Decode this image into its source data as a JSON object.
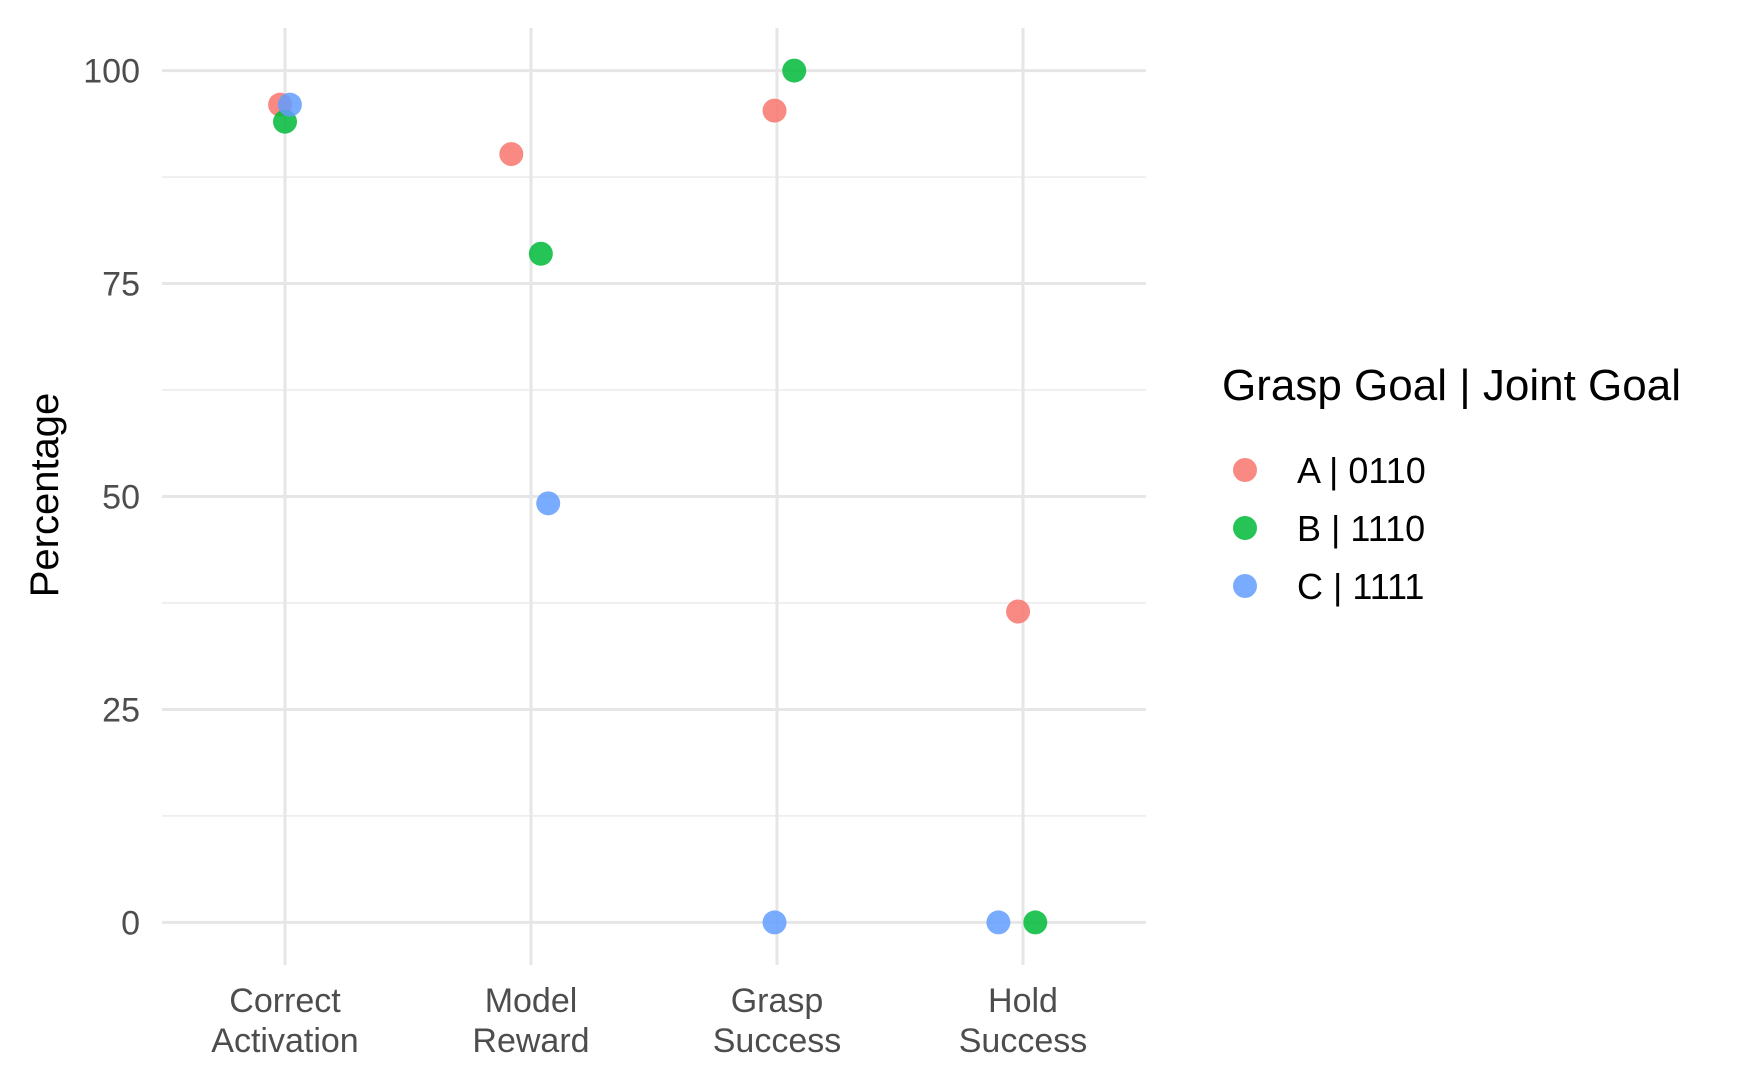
{
  "chart_data": {
    "type": "scatter",
    "title": "",
    "xlabel": "",
    "ylabel": "Percentage",
    "ylim": [
      -5,
      105
    ],
    "yticks": [
      0,
      25,
      50,
      75,
      100
    ],
    "grid": true,
    "legend": {
      "title": "Grasp Goal | Joint Goal",
      "placement": "right"
    },
    "categories": [
      [
        "Correct",
        "Activation"
      ],
      [
        "Model",
        "Reward"
      ],
      [
        "Grasp",
        "Success"
      ],
      [
        "Hold",
        "Success"
      ]
    ],
    "series": [
      {
        "name": "A | 0110",
        "color": "#F8766D",
        "points": [
          {
            "category": 0,
            "jitter": -0.02,
            "value": 96
          },
          {
            "category": 1,
            "jitter": -0.08,
            "value": 90.2
          },
          {
            "category": 2,
            "jitter": -0.01,
            "value": 95.3
          },
          {
            "category": 3,
            "jitter": -0.02,
            "value": 36.5
          }
        ]
      },
      {
        "name": "B | 1110",
        "color": "#00BA38",
        "points": [
          {
            "category": 0,
            "jitter": 0.0,
            "value": 94
          },
          {
            "category": 1,
            "jitter": 0.04,
            "value": 78.5
          },
          {
            "category": 2,
            "jitter": 0.07,
            "value": 100
          },
          {
            "category": 3,
            "jitter": 0.05,
            "value": 0
          }
        ]
      },
      {
        "name": "C | 1111",
        "color": "#619CFF",
        "points": [
          {
            "category": 0,
            "jitter": 0.02,
            "value": 96
          },
          {
            "category": 1,
            "jitter": 0.07,
            "value": 49.2
          },
          {
            "category": 2,
            "jitter": -0.01,
            "value": 0
          },
          {
            "category": 3,
            "jitter": -0.1,
            "value": 0
          }
        ]
      }
    ]
  }
}
